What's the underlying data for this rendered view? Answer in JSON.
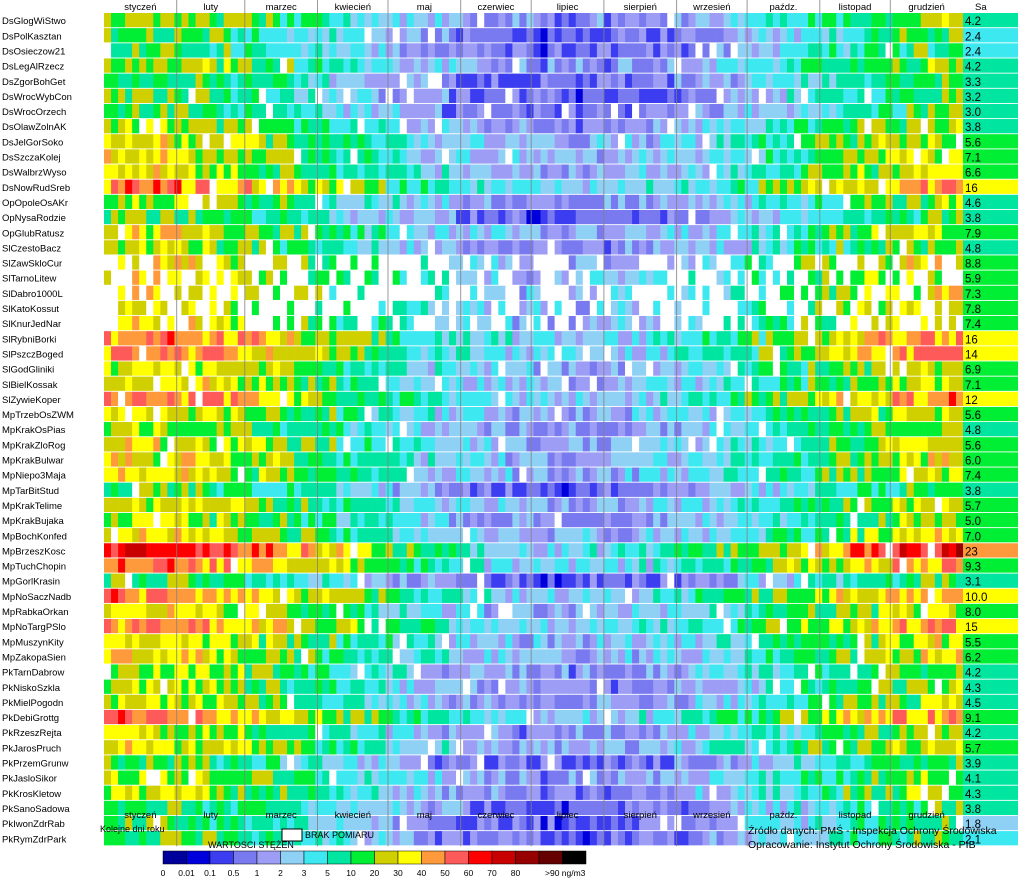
{
  "chart_data": {
    "type": "heatmap",
    "value_column_header": "Sa",
    "x_label": "Kolejne dni roku",
    "months": [
      "styczeń",
      "luty",
      "marzec",
      "kwiecień",
      "maj",
      "czerwiec",
      "lipiec",
      "sierpień",
      "wrzesień",
      "paźdz.",
      "listopad",
      "grudzień"
    ],
    "stations": [
      {
        "name": "DsGlogWiStwo",
        "value": "4.2",
        "profile": "s"
      },
      {
        "name": "DsPolKasztan",
        "value": "2.4",
        "profile": "l"
      },
      {
        "name": "DsOsieczow21",
        "value": "2.4",
        "profile": "l"
      },
      {
        "name": "DsLegAlRzecz",
        "value": "4.2",
        "profile": "s"
      },
      {
        "name": "DsZgorBohGet",
        "value": "3.3",
        "profile": "l"
      },
      {
        "name": "DsWrocWybCon",
        "value": "3.2",
        "profile": "l"
      },
      {
        "name": "DsWrocOrzech",
        "value": "3.0",
        "profile": "l"
      },
      {
        "name": "DsOlawZolnAK",
        "value": "3.8",
        "profile": "s"
      },
      {
        "name": "DsJelGorSoko",
        "value": "5.6",
        "profile": "m"
      },
      {
        "name": "DsSzczaKolej",
        "value": "7.1",
        "profile": "m"
      },
      {
        "name": "DsWalbrzWyso",
        "value": "6.6",
        "profile": "m"
      },
      {
        "name": "DsNowRudSreb",
        "value": "16",
        "profile": "h"
      },
      {
        "name": "OpOpoleOsAKr",
        "value": "4.6",
        "profile": "s"
      },
      {
        "name": "OpNysaRodzie",
        "value": "3.8",
        "profile": "l"
      },
      {
        "name": "OpGlubRatusz",
        "value": "7.9",
        "profile": "m"
      },
      {
        "name": "SlCzestoBacz",
        "value": "4.8",
        "profile": "s"
      },
      {
        "name": "SlZawSkloCur",
        "value": "8.8",
        "profile": "g"
      },
      {
        "name": "SlTarnoLitew",
        "value": "5.9",
        "profile": "g"
      },
      {
        "name": "SlDabro1000L",
        "value": "7.3",
        "profile": "g"
      },
      {
        "name": "SlKatoKossut",
        "value": "7.8",
        "profile": "g"
      },
      {
        "name": "SlKnurJedNar",
        "value": "7.4",
        "profile": "g"
      },
      {
        "name": "SlRybniBorki",
        "value": "16",
        "profile": "h"
      },
      {
        "name": "SlPszczBoged",
        "value": "14",
        "profile": "h"
      },
      {
        "name": "SlGodGliniki",
        "value": "6.9",
        "profile": "m"
      },
      {
        "name": "SlBielKossak",
        "value": "7.1",
        "profile": "m"
      },
      {
        "name": "SlZywieKoper",
        "value": "12",
        "profile": "h"
      },
      {
        "name": "MpTrzebOsZWM",
        "value": "5.6",
        "profile": "m"
      },
      {
        "name": "MpKrakOsPias",
        "value": "4.8",
        "profile": "s"
      },
      {
        "name": "MpKrakZloRog",
        "value": "5.6",
        "profile": "m"
      },
      {
        "name": "MpKrakBulwar",
        "value": "6.0",
        "profile": "m"
      },
      {
        "name": "MpNiepo3Maja",
        "value": "7.4",
        "profile": "m"
      },
      {
        "name": "MpTarBitStud",
        "value": "3.8",
        "profile": "l"
      },
      {
        "name": "MpKrakTelime",
        "value": "5.7",
        "profile": "m"
      },
      {
        "name": "MpKrakBujaka",
        "value": "5.0",
        "profile": "s"
      },
      {
        "name": "MpBochKonfed",
        "value": "7.0",
        "profile": "m"
      },
      {
        "name": "MpBrzeszKosc",
        "value": "23",
        "profile": "x"
      },
      {
        "name": "MpTuchChopin",
        "value": "9.3",
        "profile": "h"
      },
      {
        "name": "MpGorlKrasin",
        "value": "3.1",
        "profile": "l"
      },
      {
        "name": "MpNoSaczNadb",
        "value": "10.0",
        "profile": "h"
      },
      {
        "name": "MpRabkaOrkan",
        "value": "8.0",
        "profile": "m"
      },
      {
        "name": "MpNoTargPSlo",
        "value": "15",
        "profile": "h"
      },
      {
        "name": "MpMuszynKity",
        "value": "5.5",
        "profile": "m"
      },
      {
        "name": "MpZakopaSien",
        "value": "6.2",
        "profile": "m"
      },
      {
        "name": "PkTarnDabrow",
        "value": "4.2",
        "profile": "s"
      },
      {
        "name": "PkNiskoSzkla",
        "value": "4.3",
        "profile": "s"
      },
      {
        "name": "PkMielPogodn",
        "value": "4.5",
        "profile": "s"
      },
      {
        "name": "PkDebiGrottg",
        "value": "9.1",
        "profile": "h"
      },
      {
        "name": "PkRzeszRejta",
        "value": "4.2",
        "profile": "s"
      },
      {
        "name": "PkJarosPruch",
        "value": "5.7",
        "profile": "m"
      },
      {
        "name": "PkPrzemGrunw",
        "value": "3.9",
        "profile": "l"
      },
      {
        "name": "PkJasloSikor",
        "value": "4.1",
        "profile": "s"
      },
      {
        "name": "PkKrosKletow",
        "value": "4.3",
        "profile": "s"
      },
      {
        "name": "PkSanoSadowa",
        "value": "3.8",
        "profile": "l"
      },
      {
        "name": "PkIwonZdrRab",
        "value": "1.8",
        "profile": "l"
      },
      {
        "name": "PkRymZdrPark",
        "value": "2.1",
        "profile": "l"
      }
    ],
    "legend": {
      "title": "WARTOSCI STĘŻEŃ",
      "missing_label": "BRAK POMIARU",
      "unit_label": ">90 ng/m3",
      "ticks": [
        "0",
        "0.01",
        "0.1",
        "0.5",
        "1",
        "2",
        "3",
        "5",
        "10",
        "20",
        "30",
        "40",
        "50",
        "60",
        "70",
        "80"
      ],
      "colors": [
        "#00009a",
        "#0000dd",
        "#3c3cf0",
        "#7a7af0",
        "#9d9df5",
        "#8fd0f5",
        "#3ee8f0",
        "#00e5a0",
        "#00ee33",
        "#d0d000",
        "#ffff00",
        "#ff9a3c",
        "#ff5a5a",
        "#ff0000",
        "#c80000",
        "#960000",
        "#640000",
        "#000000"
      ]
    },
    "source_lines": [
      "Źródło danych: PMŚ - Inspekcja Ochrony Środowiska",
      "Opracowanie: Instytut Ochrony Środowiska - PIB"
    ]
  }
}
